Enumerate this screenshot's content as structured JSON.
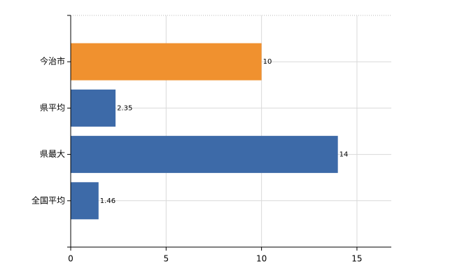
{
  "chart_data": {
    "type": "bar",
    "orientation": "horizontal",
    "categories": [
      "今治市",
      "県平均",
      "県最大",
      "全国平均"
    ],
    "values": [
      10,
      2.35,
      14,
      1.46
    ],
    "colors": [
      "#f0912f",
      "#3d6aa8",
      "#3d6aa8",
      "#3d6aa8"
    ],
    "xlim": [
      0,
      16.8
    ],
    "xticks": [
      0,
      5,
      10,
      15
    ],
    "grid": true
  }
}
